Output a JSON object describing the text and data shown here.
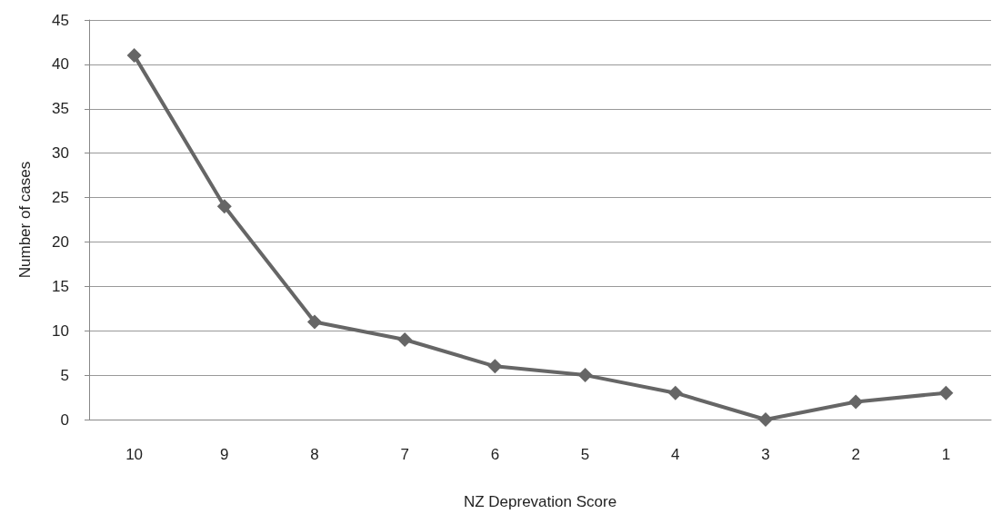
{
  "chart_data": {
    "type": "line",
    "xlabel": "NZ Deprevation Score",
    "ylabel": "Number of cases",
    "categories": [
      "10",
      "9",
      "8",
      "7",
      "6",
      "5",
      "4",
      "3",
      "2",
      "1"
    ],
    "series": [
      {
        "color": "#666666",
        "values": [
          41,
          24,
          11,
          9,
          6,
          5,
          3,
          0,
          2,
          3
        ]
      }
    ],
    "ylim": [
      0,
      45
    ],
    "yticks": [
      0,
      5,
      10,
      15,
      20,
      25,
      30,
      35,
      40,
      45
    ],
    "grid": "y",
    "marker": "diamond",
    "line_style": "solid"
  }
}
